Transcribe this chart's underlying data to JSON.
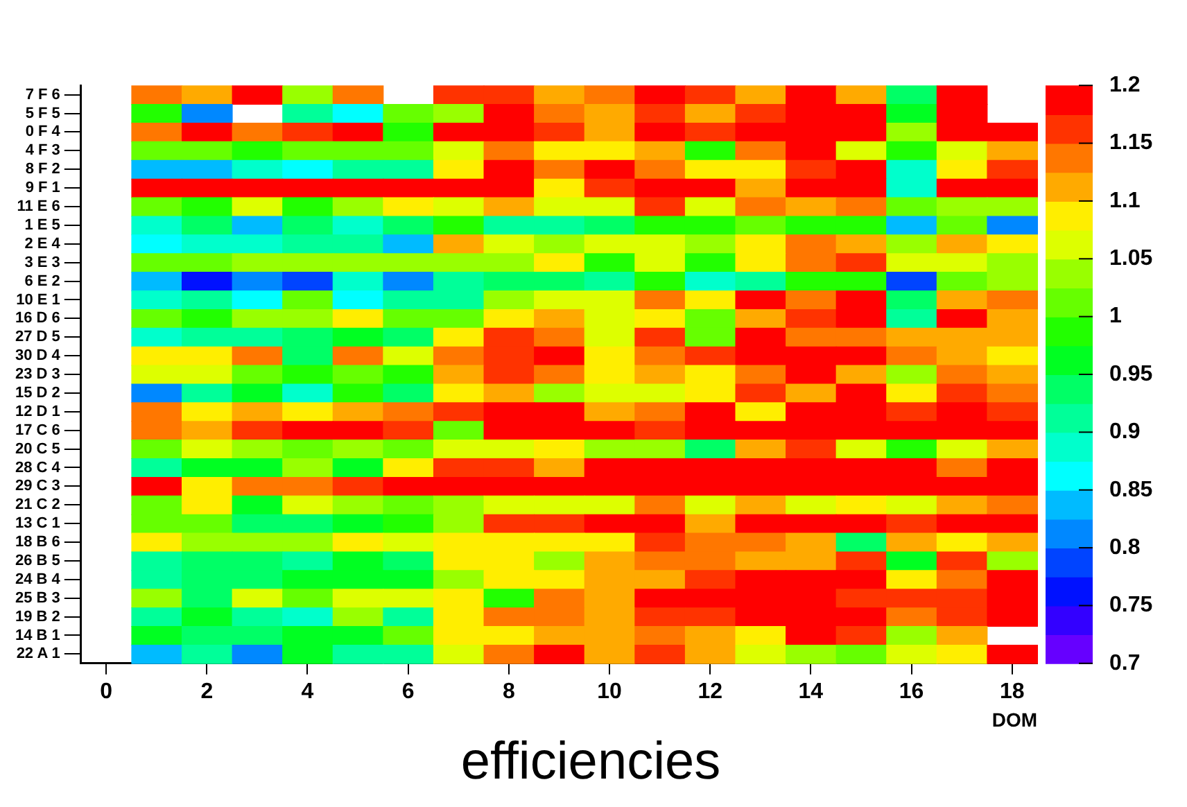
{
  "chart_data": {
    "type": "heatmap",
    "title": "efficiencies",
    "xlabel": "DOM",
    "x": [
      1,
      2,
      3,
      4,
      5,
      6,
      7,
      8,
      9,
      10,
      11,
      12,
      13,
      14,
      15,
      16,
      17,
      18
    ],
    "xlim": [
      -0.5,
      18.5
    ],
    "xticks": [
      0,
      2,
      4,
      6,
      8,
      10,
      12,
      14,
      16,
      18
    ],
    "y_categories": [
      "7 F 6",
      "5 F 5",
      "0 F 4",
      "4 F 3",
      "8 F 2",
      "9 F 1",
      "11 E 6",
      "1 E 5",
      "2 E 4",
      "3 E 3",
      "6 E 2",
      "10 E 1",
      "16 D 6",
      "27 D 5",
      "30 D 4",
      "23 D 3",
      "15 D 2",
      "12 D 1",
      "17 C 6",
      "20 C 5",
      "28 C 4",
      "29 C 3",
      "21 C 2",
      "13 C 1",
      "18 B 6",
      "26 B 5",
      "24 B 4",
      "25 B 3",
      "19 B 2",
      "14 B 1",
      "22 A 1"
    ],
    "cells": [
      [
        1.14,
        1.11,
        1.19,
        1.04,
        1.14,
        null,
        1.16,
        1.16,
        1.11,
        1.14,
        1.19,
        1.16,
        1.11,
        1.19,
        1.11,
        0.94,
        1.19,
        null
      ],
      [
        0.99,
        0.81,
        null,
        0.91,
        0.86,
        1.01,
        1.04,
        1.19,
        1.14,
        1.11,
        1.16,
        1.11,
        1.16,
        1.19,
        1.19,
        0.96,
        1.19,
        null
      ],
      [
        1.14,
        1.19,
        1.14,
        1.16,
        1.19,
        0.99,
        1.19,
        1.19,
        1.16,
        1.11,
        1.19,
        1.16,
        1.19,
        1.19,
        1.19,
        1.04,
        1.19,
        1.19
      ],
      [
        1.01,
        1.01,
        0.99,
        1.01,
        1.01,
        1.01,
        1.06,
        1.14,
        1.09,
        1.09,
        1.11,
        0.99,
        1.14,
        1.19,
        1.06,
        0.99,
        1.06,
        1.11
      ],
      [
        0.84,
        0.84,
        0.89,
        0.86,
        0.91,
        0.91,
        1.09,
        1.19,
        1.14,
        1.19,
        1.14,
        1.09,
        1.09,
        1.16,
        1.19,
        0.89,
        1.09,
        1.16
      ],
      [
        1.19,
        1.19,
        1.19,
        1.19,
        1.19,
        1.19,
        1.19,
        1.19,
        1.09,
        1.16,
        1.19,
        1.19,
        1.11,
        1.19,
        1.19,
        0.89,
        1.19,
        1.19
      ],
      [
        1.01,
        0.99,
        1.06,
        0.99,
        1.04,
        1.09,
        1.06,
        1.11,
        1.06,
        1.06,
        1.16,
        1.06,
        1.14,
        1.11,
        1.14,
        1.01,
        1.04,
        1.04
      ],
      [
        0.89,
        0.94,
        0.84,
        0.94,
        0.89,
        0.94,
        0.99,
        0.91,
        0.91,
        0.94,
        0.99,
        0.99,
        1.01,
        0.99,
        0.99,
        0.84,
        1.01,
        0.81
      ],
      [
        0.86,
        0.89,
        0.89,
        0.91,
        0.91,
        0.84,
        1.11,
        1.06,
        1.04,
        1.06,
        1.06,
        1.04,
        1.09,
        1.14,
        1.11,
        1.04,
        1.11,
        1.09
      ],
      [
        1.01,
        1.01,
        1.04,
        1.04,
        1.04,
        1.04,
        1.04,
        1.04,
        1.09,
        0.99,
        1.06,
        0.99,
        1.09,
        1.14,
        1.16,
        1.06,
        1.06,
        1.04
      ],
      [
        0.84,
        0.76,
        0.81,
        0.79,
        0.89,
        0.81,
        0.91,
        0.94,
        0.94,
        0.91,
        0.99,
        0.89,
        0.91,
        0.99,
        0.99,
        0.79,
        1.01,
        1.04
      ],
      [
        0.89,
        0.91,
        0.86,
        1.01,
        0.86,
        0.91,
        0.91,
        1.04,
        1.06,
        1.06,
        1.14,
        1.09,
        1.19,
        1.14,
        1.19,
        0.94,
        1.11,
        1.14
      ],
      [
        1.01,
        0.99,
        1.04,
        1.04,
        1.09,
        1.01,
        1.01,
        1.09,
        1.11,
        1.06,
        1.09,
        1.01,
        1.11,
        1.16,
        1.19,
        0.91,
        1.19,
        1.11
      ],
      [
        0.89,
        0.91,
        0.91,
        0.94,
        0.96,
        0.94,
        1.09,
        1.16,
        1.14,
        1.06,
        1.16,
        1.01,
        1.19,
        1.14,
        1.14,
        1.11,
        1.11,
        1.11
      ],
      [
        1.09,
        1.09,
        1.14,
        0.94,
        1.14,
        1.06,
        1.14,
        1.16,
        1.19,
        1.09,
        1.14,
        1.16,
        1.19,
        1.19,
        1.19,
        1.14,
        1.11,
        1.09
      ],
      [
        1.06,
        1.06,
        1.01,
        0.99,
        1.01,
        0.99,
        1.11,
        1.16,
        1.14,
        1.09,
        1.11,
        1.09,
        1.14,
        1.19,
        1.11,
        1.04,
        1.14,
        1.11
      ],
      [
        0.81,
        0.91,
        0.96,
        0.89,
        0.99,
        0.94,
        1.09,
        1.11,
        1.04,
        1.06,
        1.06,
        1.09,
        1.16,
        1.11,
        1.19,
        1.09,
        1.16,
        1.14
      ],
      [
        1.14,
        1.09,
        1.11,
        1.09,
        1.11,
        1.14,
        1.16,
        1.19,
        1.19,
        1.11,
        1.14,
        1.19,
        1.09,
        1.19,
        1.19,
        1.16,
        1.19,
        1.16
      ],
      [
        1.14,
        1.11,
        1.16,
        1.19,
        1.19,
        1.16,
        1.01,
        1.19,
        1.19,
        1.19,
        1.16,
        1.19,
        1.19,
        1.19,
        1.19,
        1.19,
        1.19,
        1.19
      ],
      [
        1.01,
        1.06,
        1.04,
        1.01,
        1.04,
        1.01,
        1.06,
        1.06,
        1.09,
        1.04,
        1.04,
        0.94,
        1.11,
        1.16,
        1.06,
        0.99,
        1.06,
        1.11
      ],
      [
        0.91,
        0.96,
        0.96,
        1.04,
        0.96,
        1.09,
        1.16,
        1.16,
        1.11,
        1.19,
        1.19,
        1.19,
        1.19,
        1.19,
        1.19,
        1.19,
        1.14,
        1.19
      ],
      [
        1.19,
        1.09,
        1.14,
        1.14,
        1.16,
        1.19,
        1.19,
        1.19,
        1.19,
        1.19,
        1.19,
        1.19,
        1.19,
        1.19,
        1.19,
        1.19,
        1.19,
        1.19
      ],
      [
        1.01,
        1.09,
        0.96,
        1.06,
        1.04,
        1.01,
        1.04,
        1.06,
        1.06,
        1.06,
        1.14,
        1.06,
        1.11,
        1.06,
        1.09,
        1.06,
        1.11,
        1.14
      ],
      [
        1.01,
        1.01,
        0.94,
        0.94,
        0.96,
        0.99,
        1.04,
        1.16,
        1.16,
        1.19,
        1.19,
        1.11,
        1.19,
        1.19,
        1.19,
        1.16,
        1.19,
        1.19
      ],
      [
        1.09,
        1.04,
        1.04,
        1.04,
        1.09,
        1.06,
        1.09,
        1.09,
        1.09,
        1.09,
        1.16,
        1.14,
        1.14,
        1.11,
        0.94,
        1.11,
        1.09,
        1.11
      ],
      [
        0.91,
        0.94,
        0.94,
        0.91,
        0.96,
        0.94,
        1.09,
        1.09,
        1.04,
        1.11,
        1.14,
        1.14,
        1.11,
        1.11,
        1.16,
        0.96,
        1.16,
        1.04
      ],
      [
        0.91,
        0.94,
        0.94,
        0.96,
        0.96,
        0.96,
        1.04,
        1.09,
        1.09,
        1.11,
        1.11,
        1.16,
        1.19,
        1.19,
        1.19,
        1.09,
        1.14,
        1.19
      ],
      [
        1.04,
        0.94,
        1.06,
        1.01,
        1.06,
        1.06,
        1.09,
        0.99,
        1.14,
        1.11,
        1.19,
        1.19,
        1.19,
        1.19,
        1.16,
        1.16,
        1.16,
        1.19
      ],
      [
        0.91,
        0.96,
        0.91,
        0.89,
        1.04,
        0.91,
        1.09,
        1.14,
        1.14,
        1.11,
        1.16,
        1.16,
        1.19,
        1.19,
        1.19,
        1.14,
        1.16,
        1.19
      ],
      [
        0.96,
        0.94,
        0.94,
        0.96,
        0.96,
        1.01,
        1.09,
        1.09,
        1.11,
        1.11,
        1.14,
        1.11,
        1.09,
        1.19,
        1.16,
        1.04,
        1.11,
        null
      ],
      [
        0.84,
        0.91,
        0.81,
        0.96,
        0.91,
        0.91,
        1.06,
        1.14,
        1.19,
        1.11,
        1.16,
        1.11,
        1.06,
        1.04,
        1.01,
        1.06,
        1.09,
        1.19
      ]
    ],
    "clim": [
      0.7,
      1.2
    ],
    "cticks": [
      0.7,
      0.75,
      0.8,
      0.85,
      0.9,
      0.95,
      1,
      1.05,
      1.1,
      1.15,
      1.2
    ]
  }
}
